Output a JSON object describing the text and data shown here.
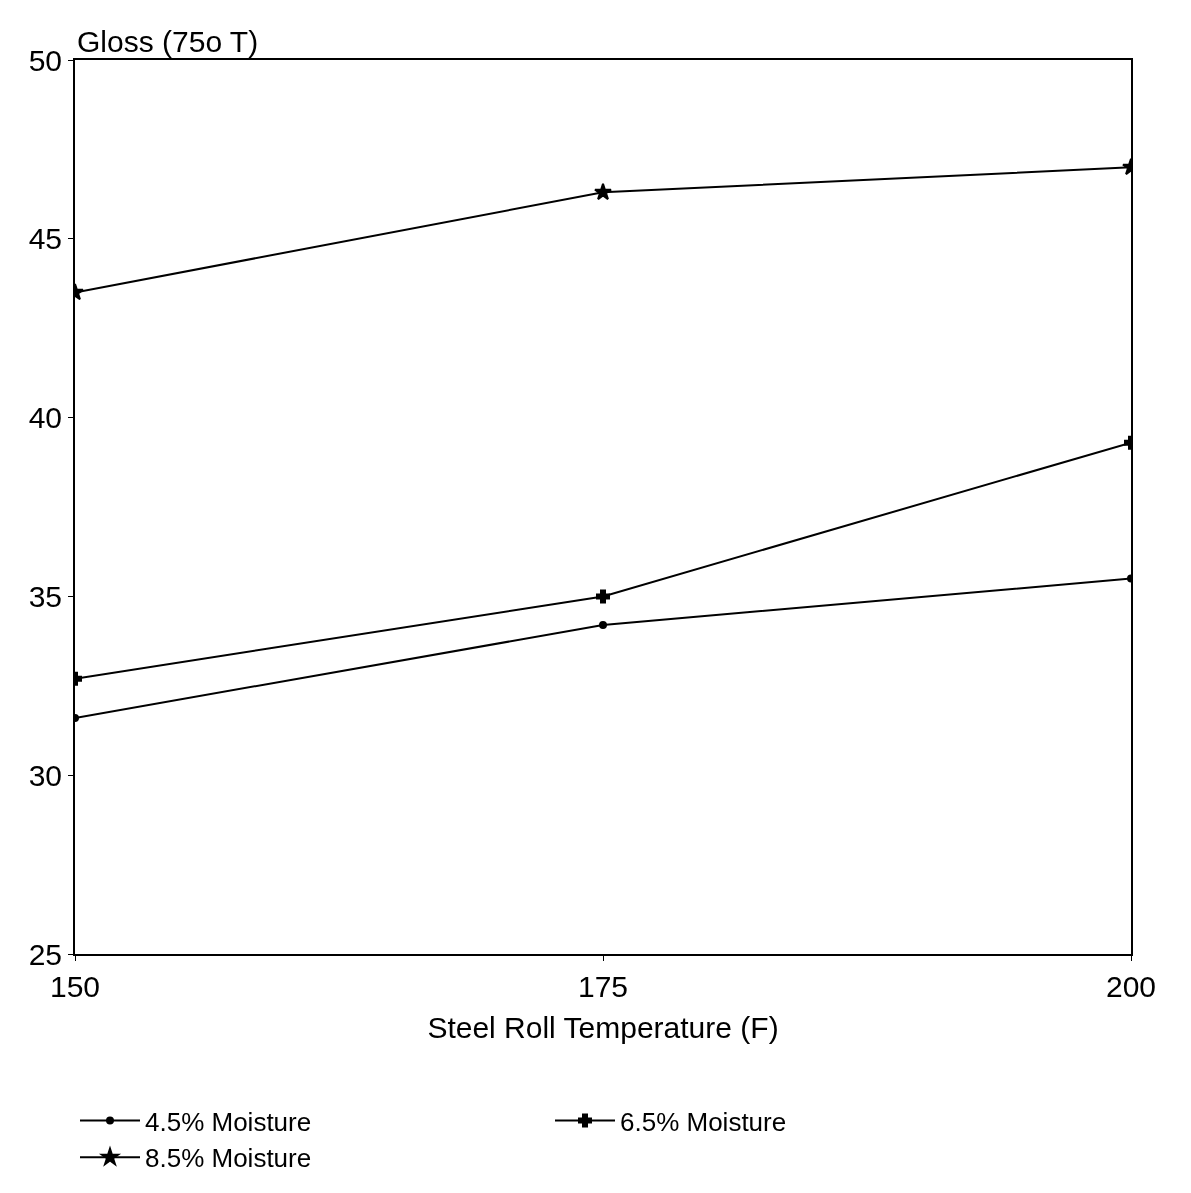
{
  "chart_data": {
    "type": "line",
    "ylabel": "Gloss (75o T)",
    "xlabel": "Steel Roll Temperature (F)",
    "x": [
      150,
      175,
      200
    ],
    "series": [
      {
        "name": "4.5% Moisture",
        "color": "#000000",
        "marker": "circle",
        "values": [
          31.6,
          34.2,
          35.5
        ]
      },
      {
        "name": "6.5% Moisture",
        "color": "#000000",
        "marker": "cross",
        "values": [
          32.7,
          35.0,
          39.3
        ]
      },
      {
        "name": "8.5% Moisture",
        "color": "#000000",
        "marker": "star",
        "values": [
          43.5,
          46.3,
          47.0
        ]
      }
    ],
    "xlim": [
      150,
      200
    ],
    "xticks": [
      150,
      175,
      200
    ],
    "ylim": [
      25,
      50
    ],
    "yticks": [
      25,
      30,
      35,
      40,
      45,
      50
    ],
    "legend": "bottom",
    "line_style": "solid"
  }
}
